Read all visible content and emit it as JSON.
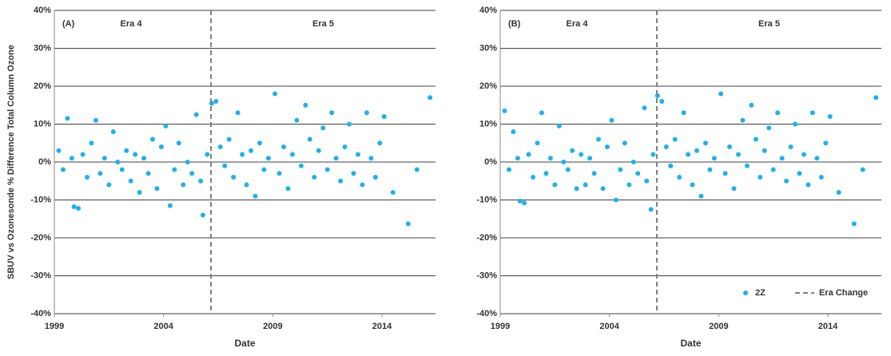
{
  "chart_data": [
    {
      "type": "scatter",
      "panel_label": "(A)",
      "era_labels": [
        "Era 4",
        "Era 5"
      ],
      "y_label": "SBUV vs Ozonesonde % Difference Total Column Ozone",
      "x_label": "Date",
      "xlim": [
        1999,
        2016.45
      ],
      "xticks": [
        1999,
        2004,
        2009,
        2014
      ],
      "ylim": [
        -40,
        40
      ],
      "yticks": [
        {
          "value": -40,
          "label": "-40%"
        },
        {
          "value": -30,
          "label": "-30%"
        },
        {
          "value": -20,
          "label": "-20%"
        },
        {
          "value": -10,
          "label": "-10%"
        },
        {
          "value": 0,
          "label": "0%"
        },
        {
          "value": 10,
          "label": "10%"
        },
        {
          "value": 20,
          "label": "20%"
        },
        {
          "value": 30,
          "label": "30%"
        },
        {
          "value": 40,
          "label": "40%"
        }
      ],
      "grid": true,
      "era_line": {
        "x": 2006.17,
        "color": "#808080"
      },
      "series": [
        {
          "color": "#1fb1ea",
          "x": [
            1999.2,
            1999.4,
            1999.6,
            1999.8,
            1999.9,
            2000.1,
            2000.3,
            2000.5,
            2000.7,
            2000.9,
            2001.1,
            2001.3,
            2001.5,
            2001.7,
            2001.9,
            2002.1,
            2002.3,
            2002.5,
            2002.7,
            2002.9,
            2003.1,
            2003.3,
            2003.5,
            2003.7,
            2003.9,
            2004.1,
            2004.3,
            2004.5,
            2004.7,
            2004.9,
            2005.1,
            2005.3,
            2005.5,
            2005.7,
            2005.8,
            2006.0,
            2006.2,
            2006.4,
            2006.6,
            2006.8,
            2007.0,
            2007.2,
            2007.4,
            2007.6,
            2007.8,
            2008.0,
            2008.2,
            2008.4,
            2008.6,
            2008.8,
            2009.1,
            2009.3,
            2009.5,
            2009.7,
            2009.9,
            2010.1,
            2010.3,
            2010.5,
            2010.7,
            2010.9,
            2011.1,
            2011.3,
            2011.5,
            2011.7,
            2011.9,
            2012.1,
            2012.3,
            2012.5,
            2012.7,
            2012.9,
            2013.1,
            2013.3,
            2013.5,
            2013.7,
            2013.9,
            2014.1,
            2014.5,
            2015.2,
            2015.6,
            2016.2
          ],
          "values": [
            3,
            -2,
            11.5,
            1,
            -11.8,
            -12.2,
            2,
            -4,
            5,
            11,
            -3,
            1,
            -6,
            8,
            0,
            -2,
            3,
            -5,
            2,
            -8,
            1,
            -3,
            6,
            -7,
            4,
            9.5,
            -11.5,
            -2,
            5,
            -6,
            0,
            -3,
            12.5,
            -5,
            -14,
            2,
            15.5,
            16,
            4,
            -1,
            6,
            -4,
            13,
            2,
            -6,
            3,
            -9,
            5,
            -2,
            1,
            18,
            -3,
            4,
            -7,
            2,
            11,
            -1,
            15,
            6,
            -4,
            3,
            9,
            -2,
            13,
            1,
            -5,
            4,
            10,
            -3,
            2,
            -6,
            13,
            1,
            -4,
            5,
            12,
            -8,
            -16.3,
            -2,
            17
          ]
        }
      ]
    },
    {
      "type": "scatter",
      "panel_label": "(B)",
      "era_labels": [
        "Era 4",
        "Era 5"
      ],
      "x_label": "Date",
      "xlim": [
        1999,
        2016.45
      ],
      "xticks": [
        1999,
        2004,
        2009,
        2014
      ],
      "ylim": [
        -40,
        40
      ],
      "yticks": [
        {
          "value": -40,
          "label": "-40%"
        },
        {
          "value": -30,
          "label": "-30%"
        },
        {
          "value": -20,
          "label": "-20%"
        },
        {
          "value": -10,
          "label": "-10%"
        },
        {
          "value": 0,
          "label": "0%"
        },
        {
          "value": 10,
          "label": "10%"
        },
        {
          "value": 20,
          "label": "20%"
        },
        {
          "value": 30,
          "label": "30%"
        },
        {
          "value": 40,
          "label": "40%"
        }
      ],
      "grid": true,
      "legend": "lower right",
      "era_line": {
        "x": 2006.17,
        "color": "#808080",
        "label": "Era Change"
      },
      "series": [
        {
          "name": "2Z",
          "color": "#1fb1ea",
          "x": [
            1999.2,
            1999.4,
            1999.6,
            1999.8,
            1999.9,
            2000.1,
            2000.3,
            2000.5,
            2000.7,
            2000.9,
            2001.1,
            2001.3,
            2001.5,
            2001.7,
            2001.9,
            2002.1,
            2002.3,
            2002.5,
            2002.7,
            2002.9,
            2003.1,
            2003.3,
            2003.5,
            2003.7,
            2003.9,
            2004.1,
            2004.3,
            2004.5,
            2004.7,
            2004.9,
            2005.1,
            2005.3,
            2005.6,
            2005.7,
            2005.9,
            2006.0,
            2006.2,
            2006.4,
            2006.6,
            2006.8,
            2007.0,
            2007.2,
            2007.4,
            2007.6,
            2007.8,
            2008.0,
            2008.2,
            2008.4,
            2008.6,
            2008.8,
            2009.1,
            2009.3,
            2009.5,
            2009.7,
            2009.9,
            2010.1,
            2010.3,
            2010.5,
            2010.7,
            2010.9,
            2011.1,
            2011.3,
            2011.5,
            2011.7,
            2011.9,
            2012.1,
            2012.3,
            2012.5,
            2012.7,
            2012.9,
            2013.1,
            2013.3,
            2013.5,
            2013.7,
            2013.9,
            2014.1,
            2014.5,
            2015.2,
            2015.6,
            2016.2
          ],
          "values": [
            13.5,
            -2,
            8,
            1,
            -10.3,
            -10.8,
            2,
            -4,
            5,
            13,
            -3,
            1,
            -6,
            9.5,
            0,
            -2,
            3,
            -7,
            2,
            -6,
            1,
            -3,
            6,
            -7,
            4,
            11,
            -10,
            -2,
            5,
            -6,
            0,
            -3,
            14.3,
            -5,
            -12.5,
            2,
            17.5,
            16,
            4,
            -1,
            6,
            -4,
            13,
            2,
            -6,
            3,
            -9,
            5,
            -2,
            1,
            18,
            -3,
            4,
            -7,
            2,
            11,
            -1,
            15,
            6,
            -4,
            3,
            9,
            -2,
            13,
            1,
            -5,
            4,
            10,
            -3,
            2,
            -6,
            13,
            1,
            -4,
            5,
            12,
            -8,
            -16.3,
            -2,
            17
          ]
        }
      ]
    }
  ]
}
